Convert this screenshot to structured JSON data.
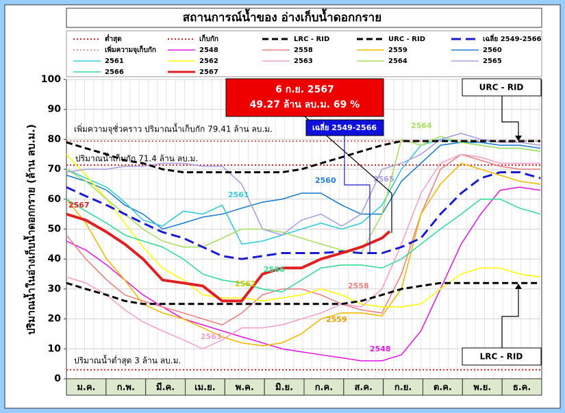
{
  "chart_data": {
    "type": "line",
    "title": "สถานการณ์น้ำของ อ่างเก็บน้ำดอกกราย",
    "y_label": "ปริมาณน้ำในอ่างเก็บน้ำดอกกราย (ล้าน ลบ.ม.)",
    "categories": [
      "ม.ค.",
      "ก.พ.",
      "มี.ค.",
      "เม.ย.",
      "พ.ค.",
      "มิ.ย.",
      "ก.ค.",
      "ส.ค.",
      "ก.ย.",
      "ต.ค.",
      "พ.ย.",
      "ธ.ค."
    ],
    "xlim": [
      0,
      366
    ],
    "ylim": [
      0,
      100
    ],
    "yticks": [
      0,
      10,
      20,
      30,
      40,
      50,
      60,
      70,
      80,
      90,
      100
    ],
    "grid": true,
    "x": [
      0,
      15,
      31,
      45,
      59,
      74,
      90,
      105,
      120,
      135,
      151,
      166,
      181,
      196,
      212,
      227,
      243,
      258,
      273,
      288,
      304,
      319,
      334,
      349,
      365
    ],
    "reference_lines": [
      {
        "name": "ต่ำสุด",
        "value": 3,
        "color": "#e02020"
      },
      {
        "name": "เก็บกัก",
        "value": 71.4,
        "color": "#e02020"
      },
      {
        "name": "เพิ่มความจุเก็บกัก",
        "value": 79.41,
        "color": "#e02020"
      }
    ],
    "series": [
      {
        "name": "LRC - RID",
        "color": "#000000",
        "style": "dashed",
        "values": [
          32,
          30,
          28,
          26,
          25,
          25,
          25,
          25,
          25,
          25,
          25,
          25,
          25,
          25,
          25,
          26,
          28,
          30,
          31,
          32,
          32,
          32,
          32,
          32,
          32
        ]
      },
      {
        "name": "URC - RID",
        "color": "#000000",
        "style": "dashed",
        "values": [
          79,
          77,
          75,
          73,
          72,
          70,
          69,
          69,
          69,
          69,
          69,
          69,
          70,
          72,
          74,
          76,
          78,
          79.4,
          79.4,
          79.4,
          79.4,
          79.4,
          79.4,
          79.4,
          79.4
        ]
      },
      {
        "name": "เฉลี่ย 2549-2566",
        "color": "#1a1ad0",
        "style": "dashed",
        "values": [
          64,
          61,
          58,
          55,
          52,
          49,
          47,
          44,
          41,
          40,
          41,
          42,
          42,
          42,
          42.5,
          42,
          42,
          44,
          47,
          55,
          62,
          67,
          69,
          69,
          67
        ]
      },
      {
        "name": "2548",
        "color": "#e020e0",
        "values": [
          46,
          43,
          38,
          33,
          28,
          24,
          20,
          18,
          16,
          14,
          12,
          10,
          9,
          8,
          7,
          6,
          6,
          8,
          16,
          30,
          45,
          55,
          63,
          64,
          63
        ]
      },
      {
        "name": "2558",
        "color": "#f08080",
        "values": [
          48,
          40,
          33,
          28,
          26,
          24,
          22,
          20,
          18,
          22,
          28,
          30,
          30,
          28,
          25,
          23,
          22,
          35,
          55,
          70,
          75,
          73,
          71,
          70,
          70
        ]
      },
      {
        "name": "2559",
        "color": "#f5b800",
        "values": [
          60,
          52,
          40,
          33,
          25,
          22,
          20,
          17,
          14,
          12,
          11,
          12,
          15,
          20,
          22,
          22,
          21,
          30,
          55,
          65,
          72,
          70,
          68,
          66,
          65
        ]
      },
      {
        "name": "2560",
        "color": "#1f7fd0",
        "values": [
          68,
          66,
          63,
          58,
          55,
          50,
          52,
          54,
          55,
          57,
          59,
          60,
          62,
          62,
          58,
          55,
          55,
          66,
          72,
          78,
          79,
          79,
          78,
          78,
          77
        ]
      },
      {
        "name": "2561",
        "color": "#33ccdd",
        "values": [
          70,
          67,
          64,
          59,
          53,
          51,
          56,
          55,
          58,
          45,
          46,
          48,
          50,
          52,
          50,
          52,
          58,
          70,
          78,
          80,
          79,
          78,
          77,
          77,
          76
        ]
      },
      {
        "name": "2562",
        "color": "#ffff00",
        "values": [
          75,
          68,
          60,
          52,
          44,
          37,
          33,
          28,
          27,
          27,
          26,
          27,
          28,
          30,
          28,
          25,
          24,
          24,
          25,
          30,
          35,
          37,
          37,
          35,
          34
        ]
      },
      {
        "name": "2563",
        "color": "#f4a0c8",
        "values": [
          34,
          32,
          28,
          23,
          19,
          16,
          13,
          10,
          13,
          17,
          17,
          18,
          20,
          22,
          25,
          24,
          30,
          45,
          62,
          72,
          75,
          74,
          72,
          72,
          72
        ]
      },
      {
        "name": "2564",
        "color": "#a8e060",
        "values": [
          70,
          66,
          60,
          55,
          50,
          46,
          44,
          44,
          47,
          50,
          50,
          49,
          47,
          45,
          43,
          42,
          55,
          80,
          78,
          81,
          79,
          78,
          77,
          77,
          76
        ]
      },
      {
        "name": "2565",
        "color": "#a8a0e0",
        "values": [
          69,
          70,
          70,
          71,
          71,
          72,
          72,
          71,
          71,
          65,
          50,
          48,
          53,
          55,
          51,
          55,
          70,
          72,
          75,
          80,
          82,
          80,
          79,
          79,
          78
        ]
      },
      {
        "name": "2566",
        "color": "#33dd99",
        "values": [
          60,
          56,
          52,
          48,
          46,
          44,
          40,
          35,
          33,
          32,
          30,
          29,
          33,
          37,
          38,
          38,
          37,
          40,
          45,
          50,
          55,
          60,
          60,
          57,
          55
        ]
      },
      {
        "name": "2567",
        "color": "#e02020",
        "width": 4,
        "x": [
          0,
          15,
          31,
          45,
          59,
          74,
          90,
          105,
          120,
          135,
          151,
          166,
          181,
          196,
          212,
          227,
          243,
          249
        ],
        "values": [
          55,
          53,
          49,
          45,
          40,
          33,
          32,
          31,
          26,
          26,
          35,
          37,
          37,
          40,
          42,
          44,
          47,
          49.27
        ]
      }
    ],
    "annotations": {
      "capacity_temp": "เพิ่มความจุชั่วคราว ปริมาณน้ำเก็บกัก 79.41 ล้าน ลบ.ม.",
      "capacity": "ปริมาณน้ำเก็บกัก 71.4 ล้าน ลบ.ม.",
      "minimum": "ปริมาณน้ำต่ำสุด 3 ล้าน ลบ.ม.",
      "current_date": "6 ก.ย. 2567",
      "current_value": "49.27 ล้าน ลบ.ม. 69 %",
      "avg_box": "เฉลี่ย 2549-2566",
      "urc_box": "URC - RID",
      "lrc_box": "LRC - RID"
    }
  }
}
